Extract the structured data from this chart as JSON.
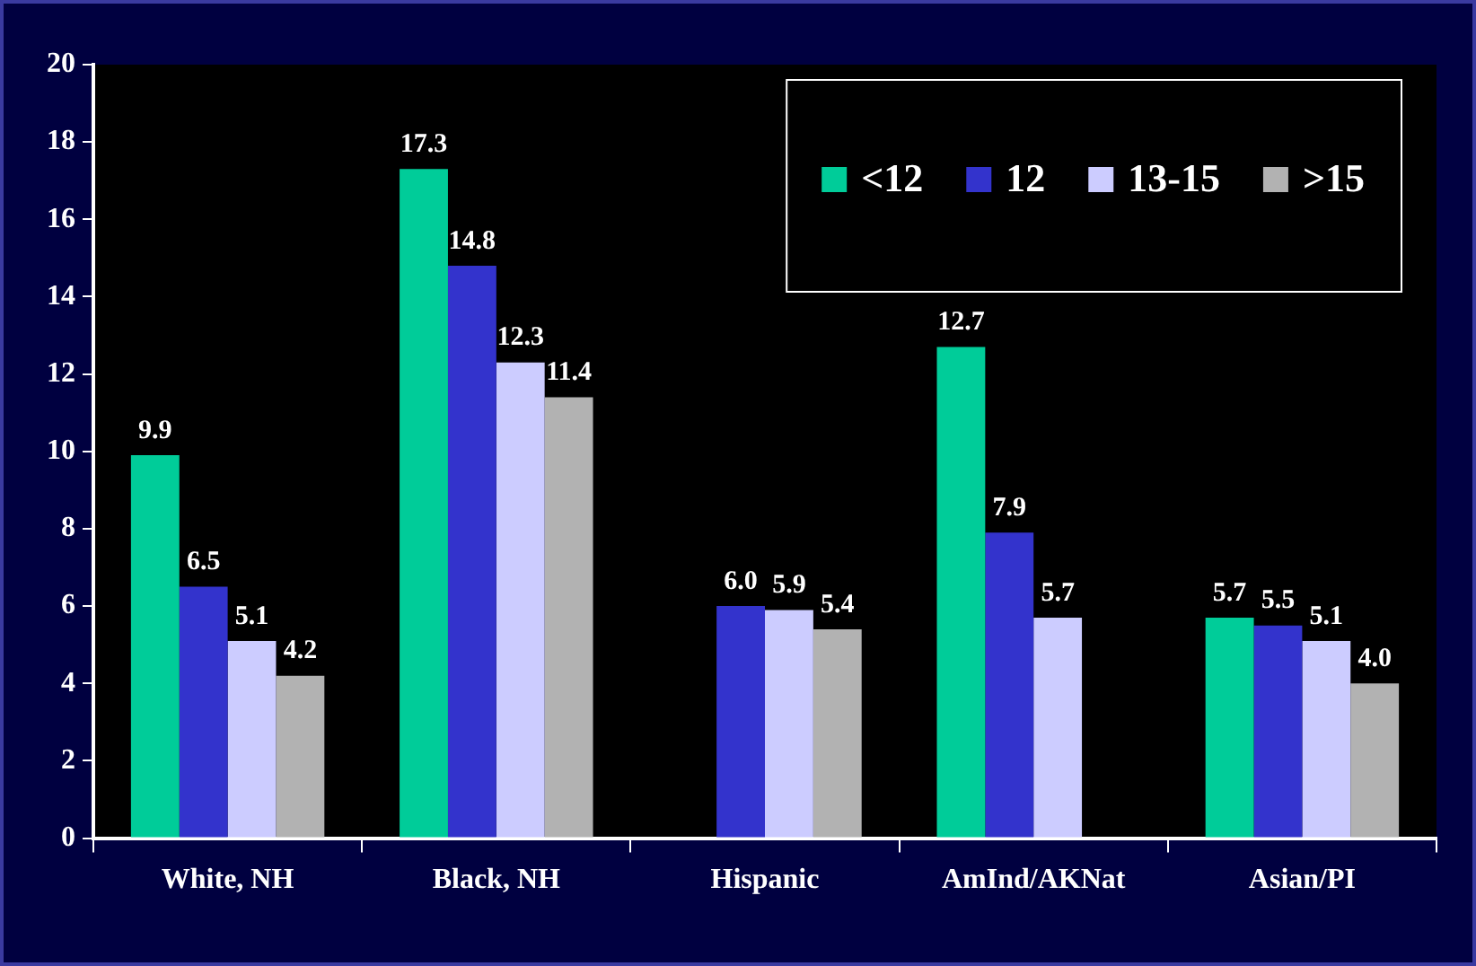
{
  "chart_data": {
    "type": "bar",
    "categories": [
      "White, NH",
      "Black, NH",
      "Hispanic",
      "AmInd/AKNat",
      "Asian/PI"
    ],
    "series": [
      {
        "name": "<12",
        "color": "#00cc99",
        "values": [
          9.9,
          17.3,
          null,
          12.7,
          5.7
        ],
        "value_labels": [
          "9.9",
          "17.3",
          null,
          "12.7",
          "5.7"
        ]
      },
      {
        "name": "12",
        "color": "#3333cc",
        "values": [
          6.5,
          14.8,
          6.0,
          7.9,
          5.5
        ],
        "value_labels": [
          "6.5",
          "14.8",
          "6.0",
          "7.9",
          "5.5"
        ]
      },
      {
        "name": "13-15",
        "color": "#ccccff",
        "values": [
          5.1,
          12.3,
          5.9,
          5.7,
          5.1
        ],
        "value_labels": [
          "5.1",
          "12.3",
          "5.9",
          "5.7",
          "5.1"
        ]
      },
      {
        "name": ">15",
        "color": "#b2b2b2",
        "values": [
          4.2,
          11.4,
          5.4,
          null,
          4.0
        ],
        "value_labels": [
          "4.2",
          "11.4",
          "5.4",
          null,
          "4.0"
        ]
      }
    ],
    "ylim": [
      0,
      20
    ],
    "yticks": [
      0,
      2,
      4,
      6,
      8,
      10,
      12,
      14,
      16,
      18,
      20
    ],
    "grid": false,
    "legend": "top right"
  }
}
